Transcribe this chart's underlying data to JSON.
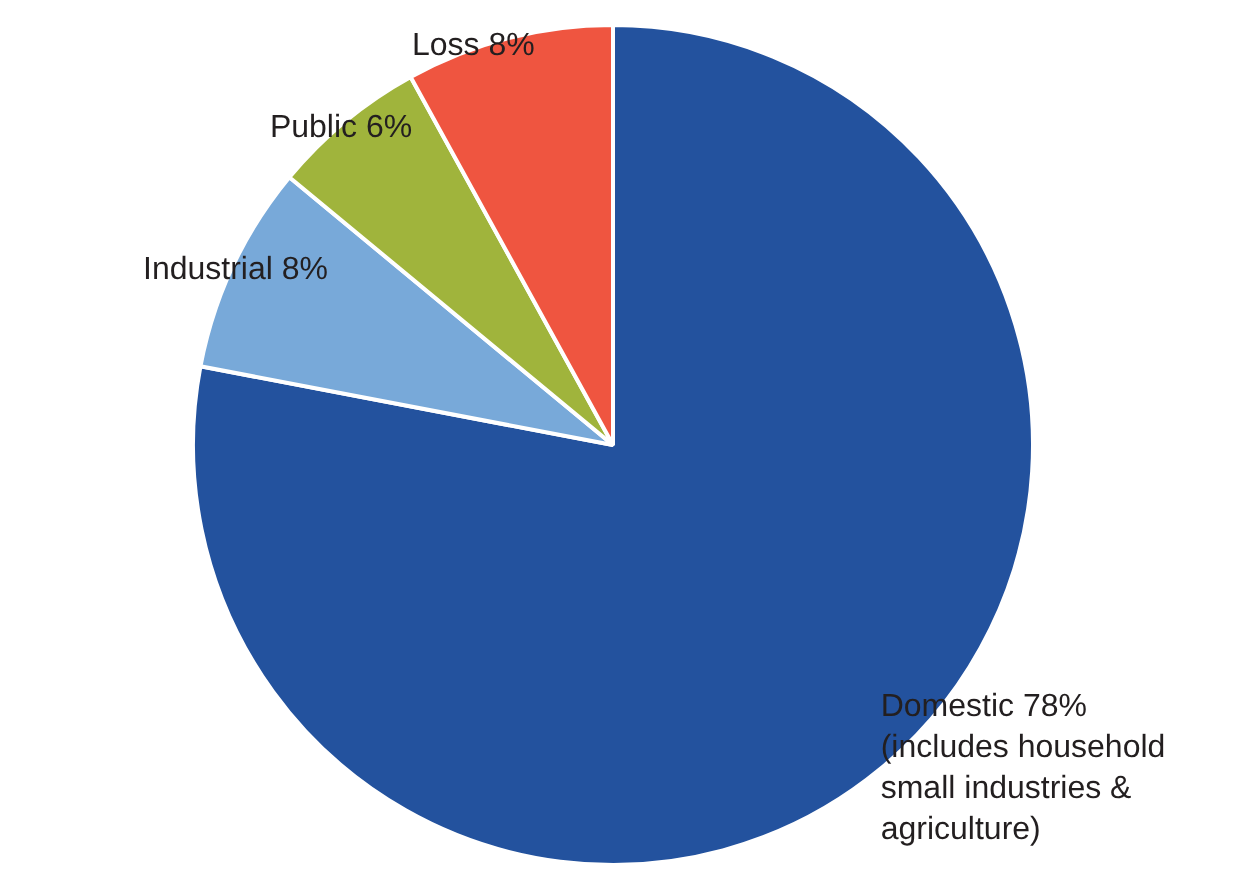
{
  "chart_data": {
    "type": "pie",
    "categories": [
      "Domestic",
      "Industrial",
      "Public",
      "Loss"
    ],
    "values": [
      78,
      8,
      6,
      8
    ],
    "colors": [
      "#23529e",
      "#78a9d9",
      "#a0b43c",
      "#ef5540"
    ],
    "value_labels": [
      "78%\n(includes household\n small industries &\n agriculture)",
      "8%",
      "6%",
      "8%"
    ],
    "legend": false
  }
}
